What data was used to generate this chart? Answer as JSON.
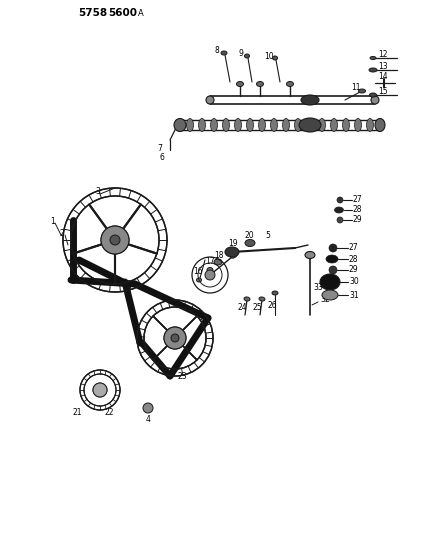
{
  "bg_color": "#ffffff",
  "line_color": "#1a1a1a",
  "fig_width": 4.27,
  "fig_height": 5.33,
  "dpi": 100,
  "title1": "5758",
  "title2": "5600",
  "title3": "A"
}
